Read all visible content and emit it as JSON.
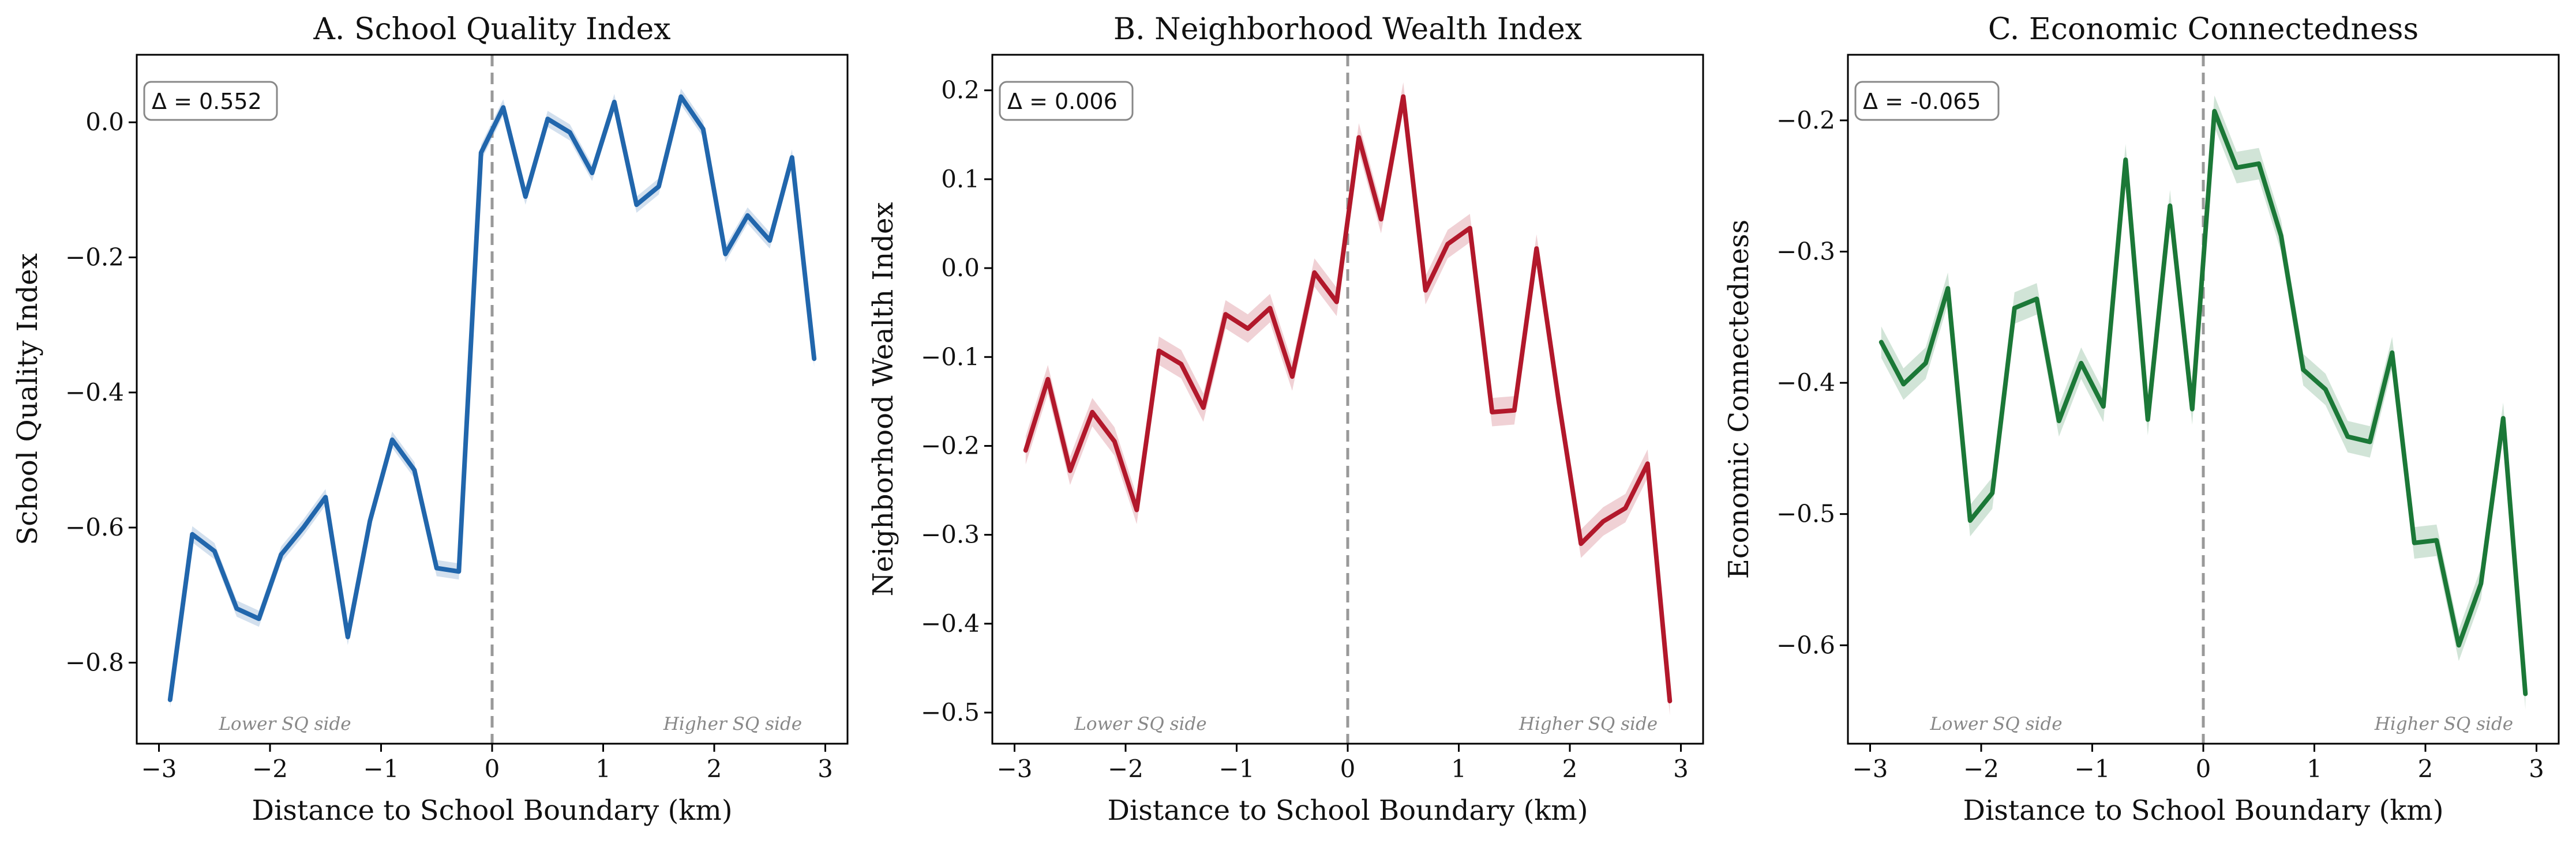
{
  "chart_data": [
    {
      "type": "line",
      "panel": "A",
      "title": "A. School Quality Index",
      "xlabel": "Distance to School Boundary (km)",
      "ylabel": "School Quality Index",
      "xlim": [
        -3.2,
        3.2
      ],
      "ylim": [
        -0.92,
        0.1
      ],
      "xticks": [
        -3,
        -2,
        -1,
        0,
        1,
        2,
        3
      ],
      "xtick_labels": [
        "−3",
        "−2",
        "−1",
        "0",
        "1",
        "2",
        "3"
      ],
      "yticks": [
        -0.8,
        -0.6,
        -0.4,
        -0.2,
        0.0
      ],
      "ytick_labels": [
        "−0.8",
        "−0.6",
        "−0.4",
        "−0.2",
        "0.0"
      ],
      "color": "#2166ac",
      "band_color": "#2166ac",
      "band_halfwidth": 0.012,
      "boundary_x": 0,
      "annotation": "Δ = 0.552",
      "side_labels": {
        "left": "Lower SQ side",
        "right": "Higher SQ side"
      },
      "grid": false,
      "x": [
        -2.9,
        -2.7,
        -2.5,
        -2.3,
        -2.1,
        -1.9,
        -1.7,
        -1.5,
        -1.3,
        -1.1,
        -0.9,
        -0.7,
        -0.5,
        -0.3,
        -0.1,
        0.1,
        0.3,
        0.5,
        0.7,
        0.9,
        1.1,
        1.3,
        1.5,
        1.7,
        1.9,
        2.1,
        2.3,
        2.5,
        2.7,
        2.9
      ],
      "y": [
        -0.855,
        -0.61,
        -0.635,
        -0.72,
        -0.735,
        -0.64,
        -0.6,
        -0.555,
        -0.762,
        -0.59,
        -0.47,
        -0.515,
        -0.66,
        -0.665,
        -0.045,
        0.022,
        -0.11,
        0.005,
        -0.015,
        -0.075,
        0.03,
        -0.122,
        -0.095,
        0.038,
        -0.01,
        -0.195,
        -0.138,
        -0.175,
        -0.052,
        -0.35
      ]
    },
    {
      "type": "line",
      "panel": "B",
      "title": "B. Neighborhood Wealth Index",
      "xlabel": "Distance to School Boundary (km)",
      "ylabel": "Neighborhood Wealth Index",
      "xlim": [
        -3.2,
        3.2
      ],
      "ylim": [
        -0.535,
        0.24
      ],
      "xticks": [
        -3,
        -2,
        -1,
        0,
        1,
        2,
        3
      ],
      "xtick_labels": [
        "−3",
        "−2",
        "−1",
        "0",
        "1",
        "2",
        "3"
      ],
      "yticks": [
        -0.5,
        -0.4,
        -0.3,
        -0.2,
        -0.1,
        0.0,
        0.1,
        0.2
      ],
      "ytick_labels": [
        "−0.5",
        "−0.4",
        "−0.3",
        "−0.2",
        "−0.1",
        "0.0",
        "0.1",
        "0.2"
      ],
      "color": "#b2182b",
      "band_color": "#b2182b",
      "band_halfwidth": 0.016,
      "boundary_x": 0,
      "annotation": "Δ = 0.006",
      "side_labels": {
        "left": "Lower SQ side",
        "right": "Higher SQ side"
      },
      "grid": false,
      "x": [
        -2.9,
        -2.7,
        -2.5,
        -2.3,
        -2.1,
        -1.9,
        -1.7,
        -1.5,
        -1.3,
        -1.1,
        -0.9,
        -0.7,
        -0.5,
        -0.3,
        -0.1,
        0.1,
        0.3,
        0.5,
        0.7,
        0.9,
        1.1,
        1.3,
        1.5,
        1.7,
        1.9,
        2.1,
        2.3,
        2.5,
        2.7,
        2.9
      ],
      "y": [
        -0.205,
        -0.125,
        -0.228,
        -0.162,
        -0.195,
        -0.272,
        -0.093,
        -0.108,
        -0.157,
        -0.052,
        -0.068,
        -0.045,
        -0.122,
        -0.005,
        -0.038,
        0.147,
        0.055,
        0.193,
        -0.025,
        0.027,
        0.045,
        -0.162,
        -0.16,
        0.022,
        -0.15,
        -0.31,
        -0.285,
        -0.27,
        -0.22,
        -0.487
      ]
    },
    {
      "type": "line",
      "panel": "C",
      "title": "C. Economic Connectedness",
      "xlabel": "Distance to School Boundary (km)",
      "ylabel": "Economic Connectedness",
      "xlim": [
        -3.2,
        3.2
      ],
      "ylim": [
        -0.675,
        -0.15
      ],
      "xticks": [
        -3,
        -2,
        -1,
        0,
        1,
        2,
        3
      ],
      "xtick_labels": [
        "−3",
        "−2",
        "−1",
        "0",
        "1",
        "2",
        "3"
      ],
      "yticks": [
        -0.6,
        -0.5,
        -0.4,
        -0.3,
        -0.2
      ],
      "ytick_labels": [
        "−0.6",
        "−0.5",
        "−0.4",
        "−0.3",
        "−0.2"
      ],
      "color": "#1b7837",
      "band_color": "#1b7837",
      "band_halfwidth": 0.012,
      "boundary_x": 0,
      "annotation": "Δ = -0.065",
      "side_labels": {
        "left": "Lower SQ side",
        "right": "Higher SQ side"
      },
      "grid": false,
      "x": [
        -2.9,
        -2.7,
        -2.5,
        -2.3,
        -2.1,
        -1.9,
        -1.7,
        -1.5,
        -1.3,
        -1.1,
        -0.9,
        -0.7,
        -0.5,
        -0.3,
        -0.1,
        0.1,
        0.3,
        0.5,
        0.7,
        0.9,
        1.1,
        1.3,
        1.5,
        1.7,
        1.9,
        2.1,
        2.3,
        2.5,
        2.7,
        2.9
      ],
      "y": [
        -0.369,
        -0.401,
        -0.385,
        -0.328,
        -0.505,
        -0.484,
        -0.343,
        -0.336,
        -0.429,
        -0.385,
        -0.418,
        -0.23,
        -0.428,
        -0.265,
        -0.42,
        -0.193,
        -0.236,
        -0.233,
        -0.288,
        -0.39,
        -0.405,
        -0.441,
        -0.445,
        -0.377,
        -0.522,
        -0.52,
        -0.6,
        -0.553,
        -0.427,
        -0.637
      ]
    }
  ]
}
